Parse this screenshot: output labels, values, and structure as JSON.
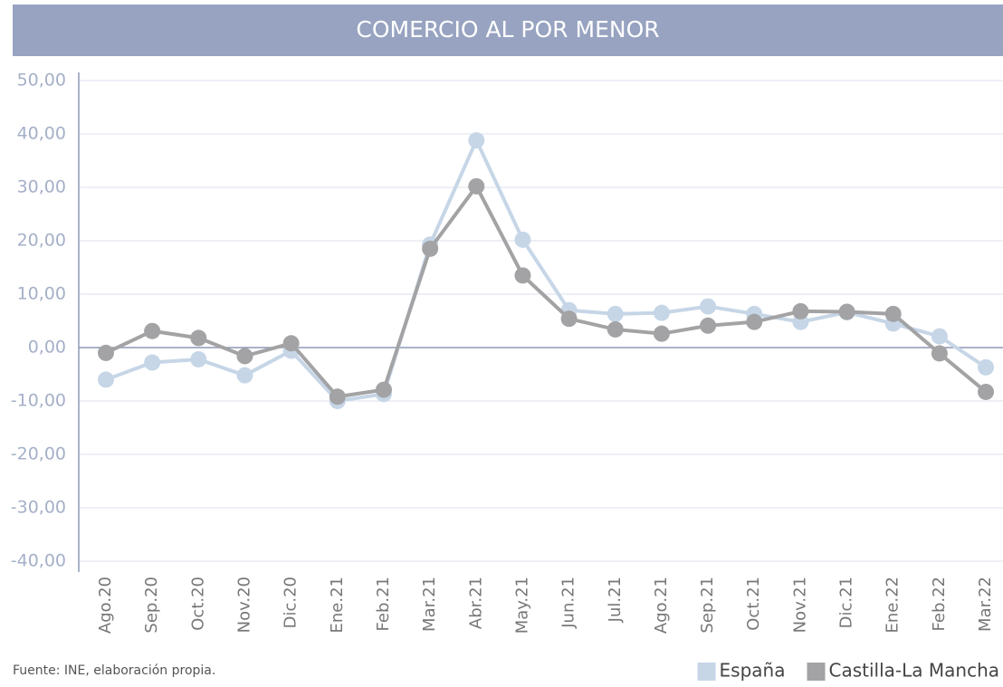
{
  "chart_data": {
    "type": "line",
    "title": "COMERCIO AL POR MENOR",
    "categories": [
      "Ago.20",
      "Sep.20",
      "Oct.20",
      "Nov.20",
      "Dic.20",
      "Ene.21",
      "Feb.21",
      "Mar.21",
      "Abr.21",
      "May.21",
      "Jun.21",
      "Jul.21",
      "Ago.21",
      "Sep.21",
      "Oct.21",
      "Nov.21",
      "Dic.21",
      "Ene.22",
      "Feb.22",
      "Mar.22"
    ],
    "series": [
      {
        "name": "España",
        "color": "#c6d6e7",
        "values": [
          -6,
          -2.8,
          -2.2,
          -5.2,
          -0.6,
          -10,
          -8.7,
          19.3,
          38.8,
          20.2,
          7,
          6.3,
          6.5,
          7.7,
          6.3,
          4.8,
          6.6,
          4.5,
          2.1,
          -3.7
        ]
      },
      {
        "name": "Castilla-La Mancha",
        "color": "#a3a3a5",
        "values": [
          -1,
          3.1,
          1.8,
          -1.6,
          0.8,
          -9.2,
          -7.9,
          18.5,
          30.2,
          13.5,
          5.4,
          3.4,
          2.6,
          4.1,
          4.8,
          6.8,
          6.7,
          6.3,
          -1.1,
          -8.3
        ]
      }
    ],
    "ylim": [
      -40,
      50
    ],
    "yticks": [
      {
        "value": -40,
        "label": "-40,00"
      },
      {
        "value": -30,
        "label": "-30,00"
      },
      {
        "value": -20,
        "label": "-20,00"
      },
      {
        "value": -10,
        "label": "-10,00"
      },
      {
        "value": 0,
        "label": "0,00"
      },
      {
        "value": 10,
        "label": "10,00"
      },
      {
        "value": 20,
        "label": "20,00"
      },
      {
        "value": 30,
        "label": "30,00"
      },
      {
        "value": 40,
        "label": "40,00"
      },
      {
        "value": 50,
        "label": "50,00"
      }
    ],
    "grid": true,
    "source": "Fuente: INE, elaboración propia.",
    "legend_position": "bottom-right"
  }
}
